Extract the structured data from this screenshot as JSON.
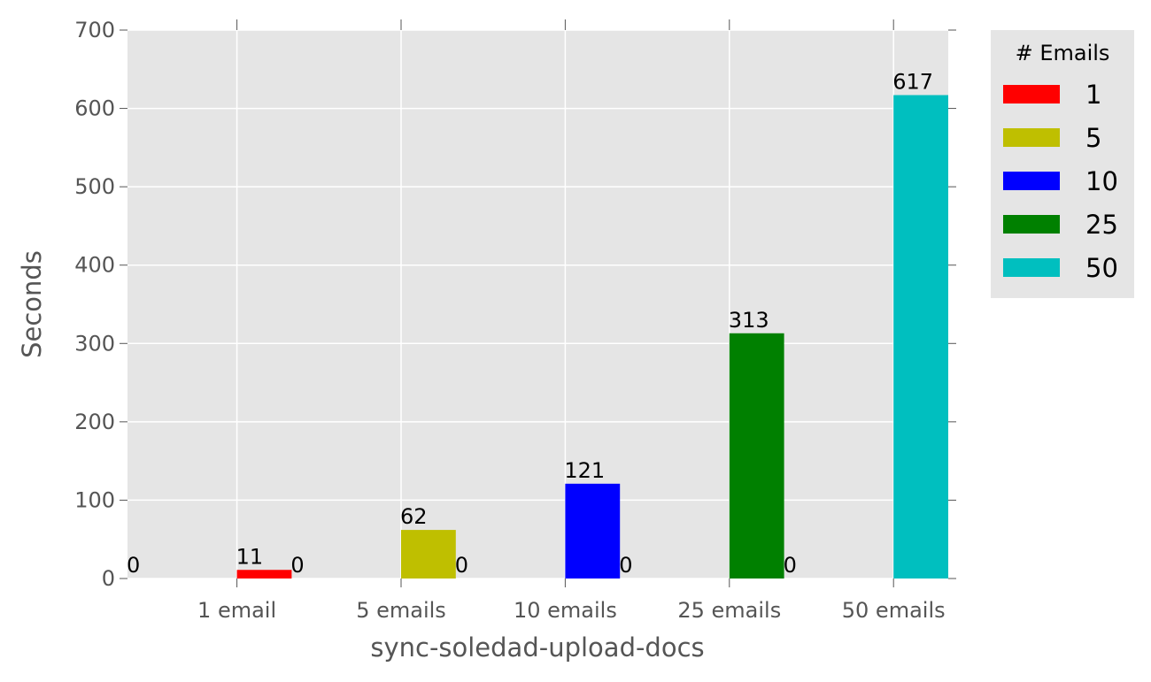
{
  "chart_data": {
    "type": "bar",
    "title": "",
    "xlabel": "sync-soledad-upload-docs",
    "ylabel": "Seconds",
    "categories": [
      "1 email",
      "5 emails",
      "10 emails",
      "25 emails",
      "50 emails"
    ],
    "ylim": [
      0,
      700
    ],
    "yticks": [
      "0",
      "100",
      "200",
      "300",
      "400",
      "500",
      "600",
      "700"
    ],
    "grid": true,
    "legend_placement": "outside-top-right",
    "legend_title": "# Emails",
    "series": [
      {
        "name": "1",
        "color": "#ff0000",
        "values": [
          11,
          0,
          0,
          0,
          0
        ]
      },
      {
        "name": "5",
        "color": "#bfbf00",
        "values": [
          0,
          62,
          0,
          0,
          0
        ]
      },
      {
        "name": "10",
        "color": "#0000ff",
        "values": [
          0,
          0,
          121,
          0,
          0
        ]
      },
      {
        "name": "25",
        "color": "#008000",
        "values": [
          0,
          0,
          0,
          313,
          0
        ]
      },
      {
        "name": "50",
        "color": "#00bfbf",
        "values": [
          0,
          0,
          0,
          0,
          617
        ]
      }
    ],
    "zero_labels": [
      "0",
      "0",
      "0",
      "0",
      "0"
    ],
    "value_labels": [
      "11",
      "62",
      "121",
      "313",
      "617"
    ]
  }
}
